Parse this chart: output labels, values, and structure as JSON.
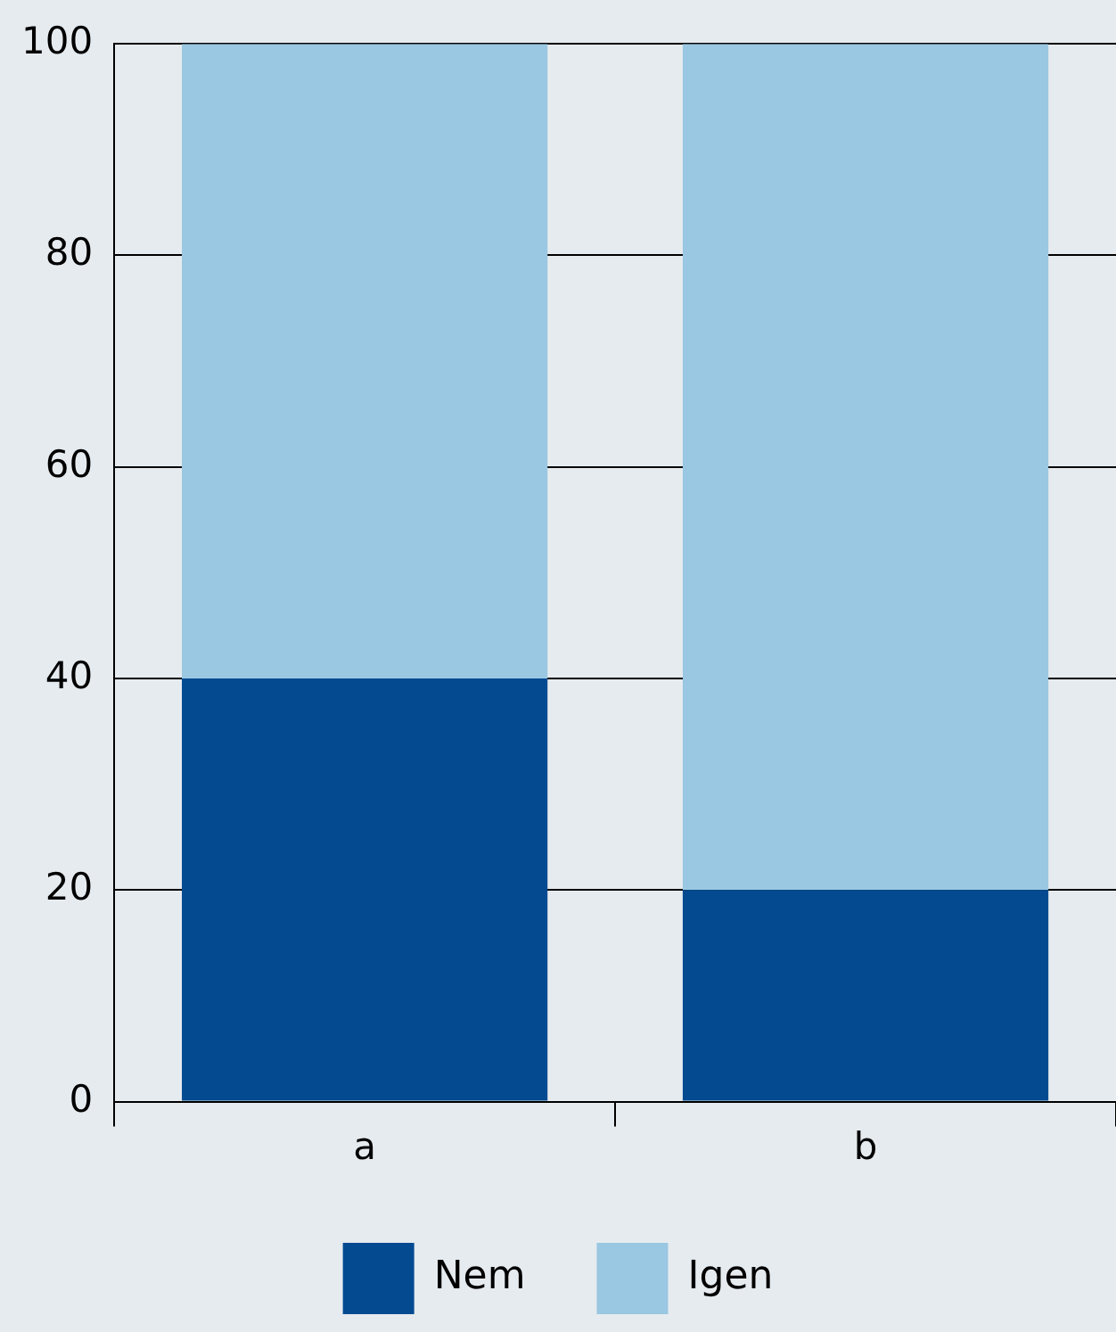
{
  "chart_data": {
    "type": "bar",
    "stacked": true,
    "categories": [
      "a",
      "b"
    ],
    "series": [
      {
        "name": "Nem",
        "color": "#034a91",
        "values": [
          40,
          20
        ]
      },
      {
        "name": "Igen",
        "color": "#9ac7e2",
        "values": [
          60,
          80
        ]
      }
    ],
    "ylim": [
      0,
      100
    ],
    "yticks": [
      0,
      20,
      40,
      60,
      80,
      100
    ],
    "grid": "y",
    "legend": "bottom"
  }
}
